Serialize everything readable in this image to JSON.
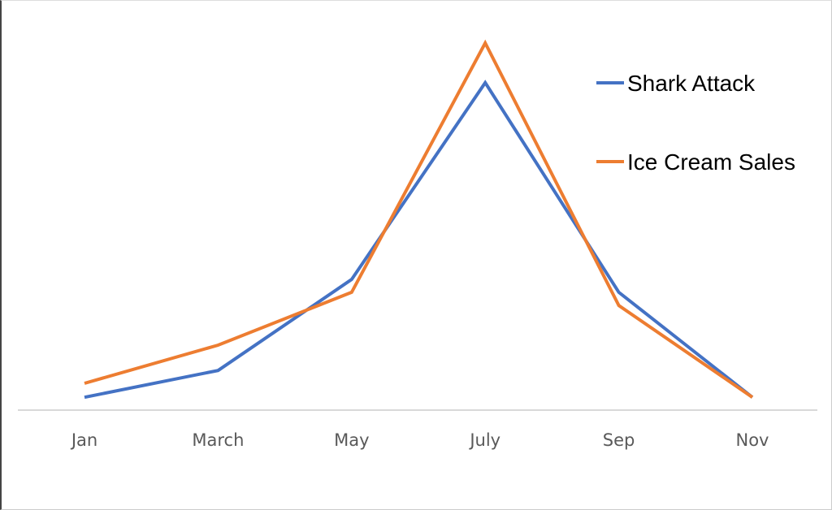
{
  "chart_data": {
    "type": "line",
    "title": "",
    "xlabel": "",
    "ylabel": "",
    "categories": [
      "Jan",
      "March",
      "May",
      "July",
      "Sep",
      "Nov"
    ],
    "ylim": [
      0,
      100
    ],
    "y_axis_shown": false,
    "grid": false,
    "legend_position": "top-right",
    "series": [
      {
        "name": "Shark Attack",
        "color": "#4472C4",
        "values": [
          3.5,
          10.8,
          35.6,
          89.2,
          32.1,
          3.5
        ]
      },
      {
        "name": "Ice Cream Sales",
        "color": "#ED7D31",
        "values": [
          7.3,
          17.7,
          32.1,
          100,
          28.5,
          3.5
        ]
      }
    ]
  }
}
